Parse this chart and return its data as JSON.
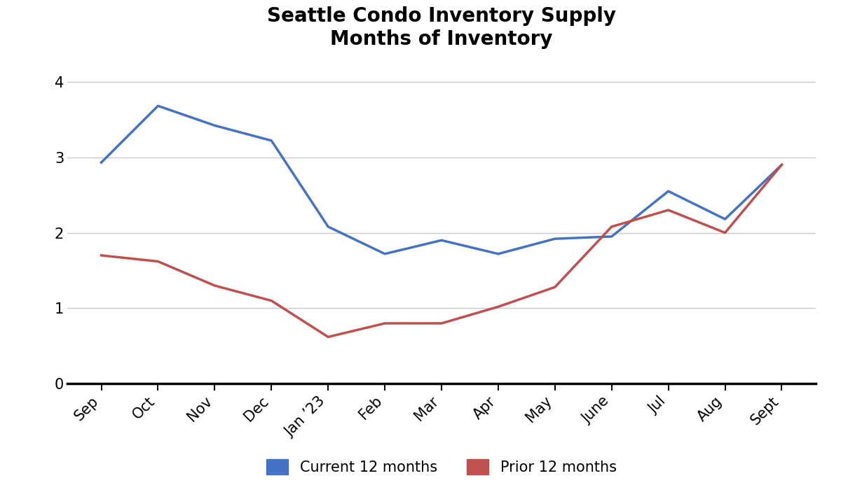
{
  "title": "Seattle Condo Inventory Supply\nMonths of Inventory",
  "x_labels": [
    "Sep",
    "Oct",
    "Nov",
    "Dec",
    "Jan ’23",
    "Feb",
    "Mar",
    "Apr",
    "May",
    "June",
    "Jul",
    "Aug",
    "Sept"
  ],
  "current_12": [
    2.93,
    3.68,
    3.42,
    3.22,
    2.08,
    1.72,
    1.9,
    1.72,
    1.92,
    1.95,
    2.55,
    2.18,
    2.9
  ],
  "prior_12": [
    1.7,
    1.62,
    1.3,
    1.1,
    0.62,
    0.8,
    0.8,
    1.02,
    1.28,
    2.08,
    2.3,
    2.0,
    2.9
  ],
  "current_color": "#4472C4",
  "prior_color": "#C0504D",
  "current_label": "Current 12 months",
  "prior_label": "Prior 12 months",
  "ylim": [
    0,
    4.3
  ],
  "yticks": [
    0,
    1,
    2,
    3,
    4
  ],
  "line_width": 2.5,
  "background_color": "#ffffff",
  "title_fontsize": 20,
  "tick_fontsize": 15,
  "legend_fontsize": 15
}
